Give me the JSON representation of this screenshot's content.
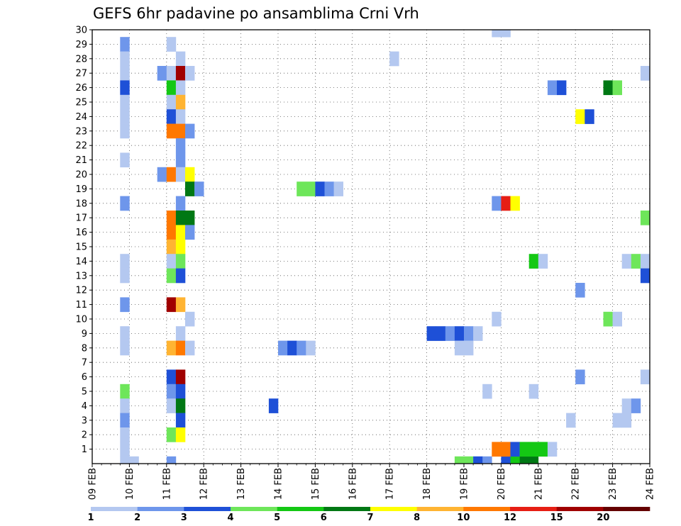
{
  "chart_data": {
    "type": "heatmap",
    "title": "GEFS 6hr padavine po ansamblima Crni Vrh",
    "xlabel": "",
    "ylabel": "",
    "x_tick_labels": [
      "09 FEB",
      "10 FEB",
      "11 FEB",
      "12 FEB",
      "13 FEB",
      "14 FEB",
      "15 FEB",
      "16 FEB",
      "17 FEB",
      "18 FEB",
      "19 FEB",
      "20 FEB",
      "21 FEB",
      "22 FEB",
      "23 FEB",
      "24 FEB"
    ],
    "y_tick_labels": [
      "1",
      "2",
      "3",
      "4",
      "5",
      "6",
      "7",
      "8",
      "9",
      "10",
      "11",
      "12",
      "13",
      "14",
      "15",
      "16",
      "17",
      "18",
      "19",
      "20",
      "21",
      "22",
      "23",
      "24",
      "25",
      "26",
      "27",
      "28",
      "29",
      "30"
    ],
    "xlim_days": [
      9,
      24
    ],
    "ylim_members": [
      0,
      30
    ],
    "grid": true,
    "colorbar": {
      "position": "bottom",
      "levels": [
        "1",
        "2",
        "3",
        "4",
        "5",
        "6",
        "7",
        "8",
        "10",
        "12",
        "15",
        "20"
      ],
      "colors": [
        "#b4c8f0",
        "#6e96eb",
        "#1e50d7",
        "#6ee65a",
        "#14c814",
        "#007814",
        "#ffff00",
        "#ffb432",
        "#ff7800",
        "#e61e14",
        "#a00000",
        "#640000"
      ]
    },
    "cells": [
      {
        "day": 9.75,
        "member": 29,
        "level": 2
      },
      {
        "day": 9.75,
        "member": 28,
        "level": 1
      },
      {
        "day": 9.75,
        "member": 27,
        "level": 1
      },
      {
        "day": 9.75,
        "member": 26,
        "level": 3
      },
      {
        "day": 9.75,
        "member": 25,
        "level": 1
      },
      {
        "day": 9.75,
        "member": 24,
        "level": 1
      },
      {
        "day": 9.75,
        "member": 23,
        "level": 1
      },
      {
        "day": 9.75,
        "member": 21,
        "level": 1
      },
      {
        "day": 9.75,
        "member": 18,
        "level": 2
      },
      {
        "day": 9.75,
        "member": 14,
        "level": 1
      },
      {
        "day": 9.75,
        "member": 13,
        "level": 1
      },
      {
        "day": 9.75,
        "member": 11,
        "level": 2
      },
      {
        "day": 9.75,
        "member": 9,
        "level": 1
      },
      {
        "day": 9.75,
        "member": 8,
        "level": 1
      },
      {
        "day": 9.75,
        "member": 5,
        "level": 4
      },
      {
        "day": 9.75,
        "member": 4,
        "level": 1
      },
      {
        "day": 9.75,
        "member": 3,
        "level": 2
      },
      {
        "day": 9.75,
        "member": 2,
        "level": 1
      },
      {
        "day": 9.75,
        "member": 1,
        "level": 1
      },
      {
        "day": 9.75,
        "member": 0,
        "level": 1
      },
      {
        "day": 10.0,
        "member": 0,
        "level": 1
      },
      {
        "day": 10.75,
        "member": 27,
        "level": 2
      },
      {
        "day": 10.75,
        "member": 20,
        "level": 2
      },
      {
        "day": 11.0,
        "member": 29,
        "level": 1
      },
      {
        "day": 11.0,
        "member": 27,
        "level": 1
      },
      {
        "day": 11.0,
        "member": 26,
        "level": 5
      },
      {
        "day": 11.0,
        "member": 25,
        "level": 1
      },
      {
        "day": 11.0,
        "member": 24,
        "level": 3
      },
      {
        "day": 11.0,
        "member": 23,
        "level": 9
      },
      {
        "day": 11.0,
        "member": 20,
        "level": 9
      },
      {
        "day": 11.0,
        "member": 17,
        "level": 9
      },
      {
        "day": 11.0,
        "member": 16,
        "level": 9
      },
      {
        "day": 11.0,
        "member": 15,
        "level": 8
      },
      {
        "day": 11.0,
        "member": 14,
        "level": 1
      },
      {
        "day": 11.0,
        "member": 13,
        "level": 4
      },
      {
        "day": 11.0,
        "member": 11,
        "level": 11
      },
      {
        "day": 11.0,
        "member": 8,
        "level": 8
      },
      {
        "day": 11.0,
        "member": 6,
        "level": 3
      },
      {
        "day": 11.0,
        "member": 5,
        "level": 2
      },
      {
        "day": 11.0,
        "member": 4,
        "level": 1
      },
      {
        "day": 11.0,
        "member": 2,
        "level": 4
      },
      {
        "day": 11.0,
        "member": 0,
        "level": 2
      },
      {
        "day": 11.25,
        "member": 28,
        "level": 1
      },
      {
        "day": 11.25,
        "member": 27,
        "level": 11
      },
      {
        "day": 11.25,
        "member": 26,
        "level": 1
      },
      {
        "day": 11.25,
        "member": 25,
        "level": 8
      },
      {
        "day": 11.25,
        "member": 24,
        "level": 1
      },
      {
        "day": 11.25,
        "member": 23,
        "level": 9
      },
      {
        "day": 11.25,
        "member": 22,
        "level": 2
      },
      {
        "day": 11.25,
        "member": 21,
        "level": 2
      },
      {
        "day": 11.25,
        "member": 20,
        "level": 1
      },
      {
        "day": 11.25,
        "member": 18,
        "level": 2
      },
      {
        "day": 11.25,
        "member": 17,
        "level": 6
      },
      {
        "day": 11.25,
        "member": 16,
        "level": 7
      },
      {
        "day": 11.25,
        "member": 15,
        "level": 7
      },
      {
        "day": 11.25,
        "member": 14,
        "level": 4
      },
      {
        "day": 11.25,
        "member": 13,
        "level": 3
      },
      {
        "day": 11.25,
        "member": 11,
        "level": 8
      },
      {
        "day": 11.25,
        "member": 9,
        "level": 1
      },
      {
        "day": 11.25,
        "member": 8,
        "level": 9
      },
      {
        "day": 11.25,
        "member": 6,
        "level": 11
      },
      {
        "day": 11.25,
        "member": 5,
        "level": 3
      },
      {
        "day": 11.25,
        "member": 4,
        "level": 6
      },
      {
        "day": 11.25,
        "member": 3,
        "level": 3
      },
      {
        "day": 11.25,
        "member": 2,
        "level": 7
      },
      {
        "day": 11.5,
        "member": 27,
        "level": 1
      },
      {
        "day": 11.5,
        "member": 23,
        "level": 2
      },
      {
        "day": 11.5,
        "member": 20,
        "level": 7
      },
      {
        "day": 11.5,
        "member": 19,
        "level": 6
      },
      {
        "day": 11.5,
        "member": 17,
        "level": 6
      },
      {
        "day": 11.5,
        "member": 16,
        "level": 2
      },
      {
        "day": 11.5,
        "member": 10,
        "level": 1
      },
      {
        "day": 11.5,
        "member": 8,
        "level": 1
      },
      {
        "day": 11.75,
        "member": 19,
        "level": 2
      },
      {
        "day": 13.75,
        "member": 4,
        "level": 3
      },
      {
        "day": 14.0,
        "member": 8,
        "level": 2
      },
      {
        "day": 14.25,
        "member": 8,
        "level": 3
      },
      {
        "day": 14.5,
        "member": 8,
        "level": 2
      },
      {
        "day": 14.75,
        "member": 8,
        "level": 1
      },
      {
        "day": 14.5,
        "member": 19,
        "level": 4
      },
      {
        "day": 14.75,
        "member": 19,
        "level": 4
      },
      {
        "day": 15.0,
        "member": 19,
        "level": 3
      },
      {
        "day": 15.25,
        "member": 19,
        "level": 2
      },
      {
        "day": 15.5,
        "member": 19,
        "level": 1
      },
      {
        "day": 17.0,
        "member": 28,
        "level": 1
      },
      {
        "day": 18.0,
        "member": 9,
        "level": 3
      },
      {
        "day": 18.25,
        "member": 9,
        "level": 3
      },
      {
        "day": 18.5,
        "member": 9,
        "level": 2
      },
      {
        "day": 18.75,
        "member": 9,
        "level": 3
      },
      {
        "day": 19.0,
        "member": 9,
        "level": 2
      },
      {
        "day": 19.25,
        "member": 9,
        "level": 1
      },
      {
        "day": 18.75,
        "member": 8,
        "level": 1
      },
      {
        "day": 19.0,
        "member": 8,
        "level": 1
      },
      {
        "day": 18.75,
        "member": 0,
        "level": 4
      },
      {
        "day": 19.0,
        "member": 0,
        "level": 4
      },
      {
        "day": 19.25,
        "member": 0,
        "level": 3
      },
      {
        "day": 19.5,
        "member": 0,
        "level": 2
      },
      {
        "day": 20.0,
        "member": 0,
        "level": 3
      },
      {
        "day": 20.25,
        "member": 0,
        "level": 5
      },
      {
        "day": 20.5,
        "member": 0,
        "level": 6
      },
      {
        "day": 20.75,
        "member": 0,
        "level": 6
      },
      {
        "day": 19.5,
        "member": 5,
        "level": 1
      },
      {
        "day": 19.75,
        "member": 30,
        "level": 1
      },
      {
        "day": 20.0,
        "member": 30,
        "level": 1
      },
      {
        "day": 19.75,
        "member": 18,
        "level": 2
      },
      {
        "day": 20.0,
        "member": 18,
        "level": 10
      },
      {
        "day": 20.25,
        "member": 18,
        "level": 7
      },
      {
        "day": 19.75,
        "member": 10,
        "level": 1
      },
      {
        "day": 19.75,
        "member": 1,
        "level": 9
      },
      {
        "day": 20.0,
        "member": 1,
        "level": 9
      },
      {
        "day": 20.25,
        "member": 1,
        "level": 3
      },
      {
        "day": 20.5,
        "member": 1,
        "level": 5
      },
      {
        "day": 20.75,
        "member": 1,
        "level": 5
      },
      {
        "day": 21.0,
        "member": 1,
        "level": 5
      },
      {
        "day": 21.25,
        "member": 1,
        "level": 1
      },
      {
        "day": 20.75,
        "member": 14,
        "level": 5
      },
      {
        "day": 21.0,
        "member": 14,
        "level": 1
      },
      {
        "day": 20.75,
        "member": 5,
        "level": 1
      },
      {
        "day": 21.25,
        "member": 26,
        "level": 2
      },
      {
        "day": 21.5,
        "member": 26,
        "level": 3
      },
      {
        "day": 21.75,
        "member": 3,
        "level": 1
      },
      {
        "day": 22.0,
        "member": 24,
        "level": 7
      },
      {
        "day": 22.25,
        "member": 24,
        "level": 3
      },
      {
        "day": 22.0,
        "member": 12,
        "level": 2
      },
      {
        "day": 22.0,
        "member": 6,
        "level": 2
      },
      {
        "day": 22.75,
        "member": 26,
        "level": 6
      },
      {
        "day": 23.0,
        "member": 26,
        "level": 4
      },
      {
        "day": 22.75,
        "member": 10,
        "level": 4
      },
      {
        "day": 23.0,
        "member": 10,
        "level": 1
      },
      {
        "day": 23.0,
        "member": 3,
        "level": 1
      },
      {
        "day": 23.25,
        "member": 3,
        "level": 1
      },
      {
        "day": 23.25,
        "member": 14,
        "level": 1
      },
      {
        "day": 23.5,
        "member": 14,
        "level": 4
      },
      {
        "day": 23.75,
        "member": 14,
        "level": 1
      },
      {
        "day": 23.25,
        "member": 4,
        "level": 1
      },
      {
        "day": 23.5,
        "member": 4,
        "level": 2
      },
      {
        "day": 23.75,
        "member": 27,
        "level": 1
      },
      {
        "day": 23.75,
        "member": 17,
        "level": 4
      },
      {
        "day": 23.75,
        "member": 13,
        "level": 3
      },
      {
        "day": 23.75,
        "member": 6,
        "level": 1
      }
    ]
  }
}
